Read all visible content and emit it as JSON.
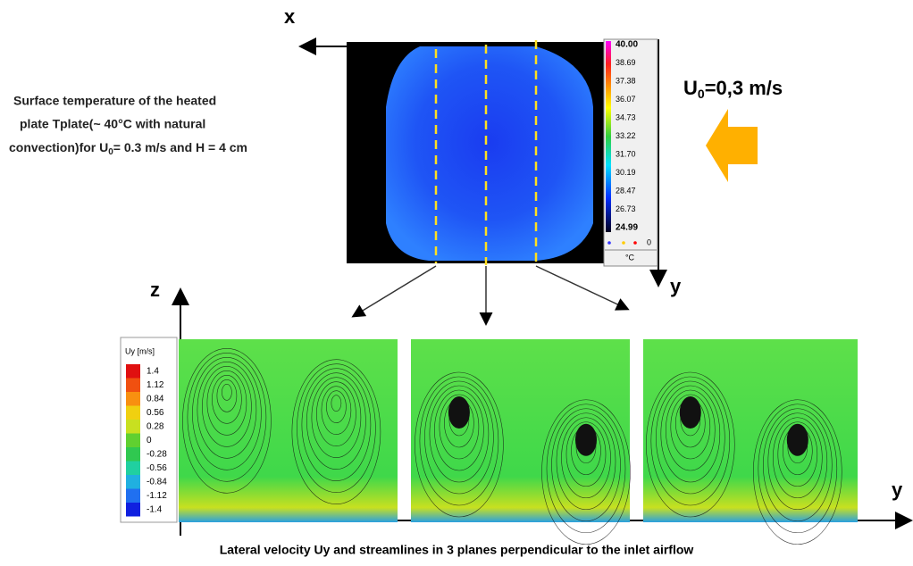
{
  "top_axes": {
    "x_label": "x",
    "y_label": "y"
  },
  "inflow": {
    "symbol": "U",
    "subscript": "0",
    "rest": "=0,3 m/s"
  },
  "description": {
    "line1": "Surface temperature of the heated",
    "line2": "plate  Tplate(~ 40°C with natural",
    "line3_start": "convection)for U",
    "line3_subscript": "0",
    "line3_end": "= 0.3 m/s and H = 4 cm"
  },
  "thermal_scale": {
    "labels": [
      "40.00",
      "38.69",
      "37.38",
      "36.07",
      "34.73",
      "33.22",
      "31.70",
      "30.19",
      "28.47",
      "26.73",
      "24.99"
    ],
    "marker_label": "0",
    "unit": "°C"
  },
  "bottom_axes": {
    "z_label": "z",
    "y_label": "y"
  },
  "velocity_scale": {
    "title": "Uy [m/s]",
    "labels": [
      "1.4",
      "1.12",
      "0.84",
      "0.56",
      "0.28",
      "0",
      "-0.28",
      "-0.56",
      "-0.84",
      "-1.12",
      "-1.4"
    ]
  },
  "caption": "Lateral velocity Uy and streamlines in 3 planes perpendicular to the inlet airflow"
}
